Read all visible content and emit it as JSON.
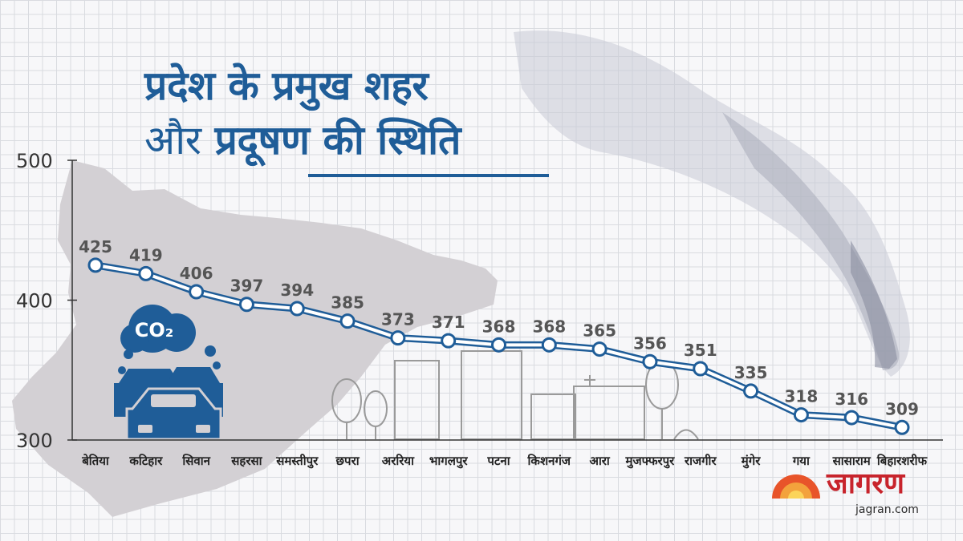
{
  "title": {
    "line1": "प्रदेश के प्रमुख शहर",
    "line2_prefix": "और",
    "line2_bold": "प्रदूषण की स्थिति"
  },
  "logo": {
    "name": "जागरण",
    "url": "jagran.com"
  },
  "colors": {
    "title": "#1f5d98",
    "line": "#1f5d98",
    "map": "#d3d0d4",
    "logo": "#c8242c"
  },
  "decor_icons": [
    "bihar-map-silhouette",
    "co2-cloud-icon",
    "car-icon",
    "building-icon",
    "tree-icon",
    "smoke-plume"
  ],
  "chart_data": {
    "type": "line",
    "categories": [
      "बेतिया",
      "कटिहार",
      "सिवान",
      "सहरसा",
      "समस्तीपुर",
      "छपरा",
      "अररिया",
      "भागलपुर",
      "पटना",
      "किशनगंज",
      "आरा",
      "मुजफ्फरपुर",
      "राजगीर",
      "मुंगेर",
      "गया",
      "सासाराम",
      "बिहारशरीफ"
    ],
    "values": [
      425,
      419,
      406,
      397,
      394,
      385,
      373,
      371,
      368,
      368,
      365,
      356,
      351,
      335,
      318,
      316,
      309
    ],
    "yticks": [
      300,
      400,
      500
    ],
    "ylim": [
      300,
      500
    ],
    "title": "",
    "xlabel": "",
    "ylabel": "",
    "grid": true,
    "legend": "none"
  }
}
